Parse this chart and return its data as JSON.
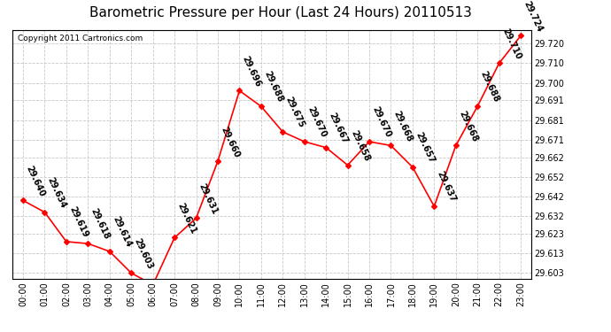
{
  "title": "Barometric Pressure per Hour (Last 24 Hours) 20110513",
  "copyright": "Copyright 2011 Cartronics.com",
  "hours": [
    "00:00",
    "01:00",
    "02:00",
    "03:00",
    "04:00",
    "05:00",
    "06:00",
    "07:00",
    "08:00",
    "09:00",
    "10:00",
    "11:00",
    "12:00",
    "13:00",
    "14:00",
    "15:00",
    "16:00",
    "17:00",
    "18:00",
    "19:00",
    "20:00",
    "21:00",
    "22:00",
    "23:00"
  ],
  "values": [
    29.64,
    29.634,
    29.619,
    29.618,
    29.614,
    29.603,
    29.597,
    29.621,
    29.631,
    29.66,
    29.696,
    29.688,
    29.675,
    29.67,
    29.667,
    29.658,
    29.67,
    29.668,
    29.657,
    29.637,
    29.668,
    29.688,
    29.71,
    29.724
  ],
  "ylim_min": 29.6,
  "ylim_max": 29.727,
  "yticks": [
    29.603,
    29.613,
    29.623,
    29.632,
    29.642,
    29.652,
    29.662,
    29.671,
    29.681,
    29.691,
    29.7,
    29.71,
    29.72
  ],
  "line_color": "red",
  "marker_color": "red",
  "bg_color": "white",
  "grid_color": "#c8c8c8",
  "title_fontsize": 11,
  "copyright_fontsize": 6.5,
  "label_fontsize": 7,
  "tick_fontsize": 7,
  "label_rotation": -65
}
